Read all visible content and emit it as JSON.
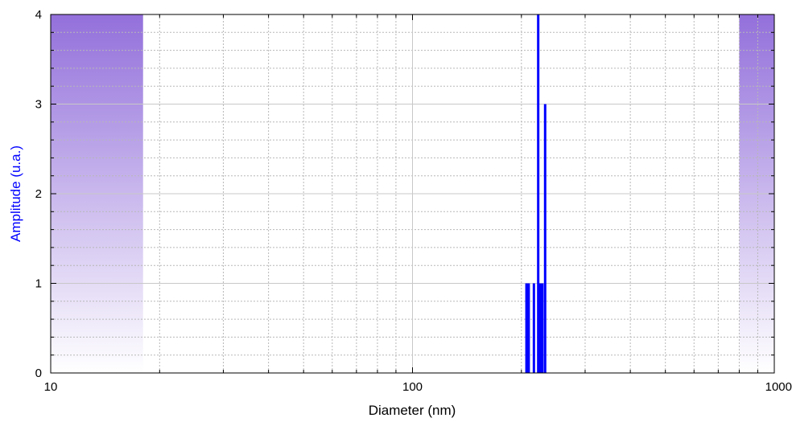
{
  "chart_data": {
    "type": "bar",
    "x_scale": "log",
    "xlim": [
      10,
      1000
    ],
    "ylim": [
      0,
      4
    ],
    "xlabel": "Diameter (nm)",
    "ylabel": "Amplitude (u.a.)",
    "x_ticks": [
      "10",
      "100",
      "1000"
    ],
    "y_ticks": [
      "0",
      "1",
      "2",
      "3",
      "4"
    ],
    "grid": true,
    "bars": [
      {
        "x": 206,
        "value": 1
      },
      {
        "x": 209,
        "value": 1
      },
      {
        "x": 216,
        "value": 1
      },
      {
        "x": 222,
        "value": 4
      },
      {
        "x": 225,
        "value": 1
      },
      {
        "x": 228,
        "value": 1
      },
      {
        "x": 232,
        "value": 3
      }
    ],
    "shaded_regions": [
      {
        "from": 10,
        "to": 18
      },
      {
        "from": 800,
        "to": 1000
      }
    ]
  },
  "colors": {
    "bars": "#0000ff",
    "ylabel": "#0000ff",
    "region_top": "#9370db",
    "grid_major": "#c8c8c8",
    "grid_minor": "#b8b8b8"
  }
}
